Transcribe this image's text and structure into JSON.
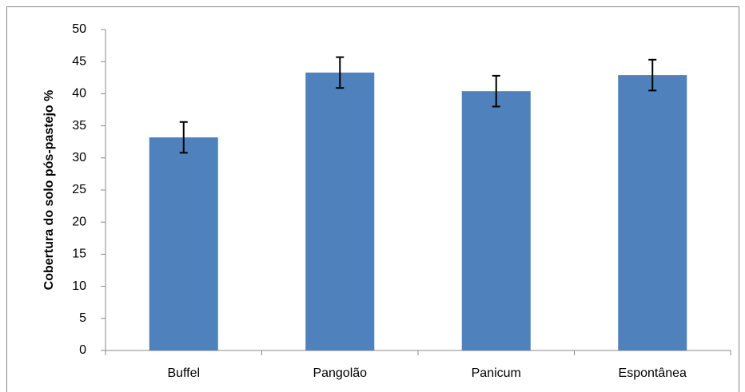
{
  "chart_data": {
    "type": "bar",
    "ylabel": "Cobertura do solo pós-pastejo %",
    "categories": [
      "Buffel",
      "Pangolão",
      "Panicum",
      "Espontânea"
    ],
    "values": [
      33.2,
      43.3,
      40.4,
      42.9
    ],
    "errors": [
      2.4,
      2.4,
      2.4,
      2.4
    ],
    "color": "#4f81bd",
    "ylim": [
      0,
      50
    ],
    "yticks": [
      0,
      5,
      10,
      15,
      20,
      25,
      30,
      35,
      40,
      45,
      50
    ],
    "grid": false
  }
}
